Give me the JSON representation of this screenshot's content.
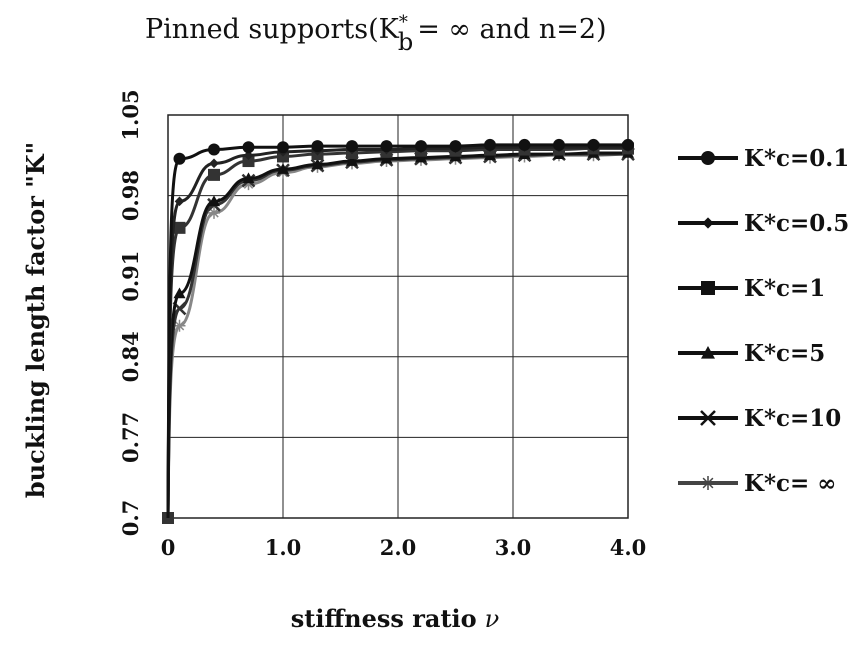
{
  "chart_data": {
    "type": "line",
    "title": "Pinned supports(K",
    "title_superscript": "*",
    "title_subscript": "b",
    "title_tail": "= ∞ and n=2)",
    "xlabel": "stiffness ratio",
    "xlabel_symbol": "ν",
    "ylabel": "buckling length factor \"K\"",
    "xlim": [
      0,
      4.0
    ],
    "ylim": [
      0.7,
      1.05
    ],
    "x_ticks": [
      0,
      1.0,
      2.0,
      3.0,
      4.0
    ],
    "x_tick_labels": [
      "0",
      "1.0",
      "2.0",
      "3.0",
      "4.0"
    ],
    "y_ticks": [
      0.7,
      0.77,
      0.84,
      0.91,
      0.98,
      1.05
    ],
    "y_tick_labels": [
      "0.7",
      "0.77",
      "0.84",
      "0.91",
      "0.98",
      "1.05"
    ],
    "grid": true,
    "legend_position": "right",
    "series": [
      {
        "name": "K*c=0.1",
        "marker": "circle",
        "color": "#111111",
        "x": [
          0.1,
          0.4,
          0.7,
          1.0,
          1.3,
          1.6,
          1.9,
          2.2,
          2.5,
          2.8,
          3.1,
          3.4,
          3.7,
          4.0
        ],
        "y": [
          1.012,
          1.02,
          1.022,
          1.022,
          1.023,
          1.023,
          1.023,
          1.023,
          1.023,
          1.024,
          1.024,
          1.024,
          1.024,
          1.024
        ]
      },
      {
        "name": "K*c=0.5",
        "marker": "diamond",
        "color": "#222222",
        "x": [
          0.1,
          0.4,
          0.7,
          1.0,
          1.3,
          1.6,
          1.9,
          2.2,
          2.5,
          2.8,
          3.1,
          3.4,
          3.7,
          4.0
        ],
        "y": [
          0.975,
          1.008,
          1.015,
          1.018,
          1.019,
          1.02,
          1.02,
          1.021,
          1.021,
          1.022,
          1.022,
          1.022,
          1.022,
          1.022
        ]
      },
      {
        "name": "K*c=1",
        "marker": "square",
        "color": "#333333",
        "x": [
          0,
          0.1,
          0.4,
          0.7,
          1.0,
          1.3,
          1.6,
          1.9,
          2.2,
          2.5,
          2.8,
          3.1,
          3.4,
          3.7,
          4.0
        ],
        "y": [
          0.7,
          0.952,
          0.998,
          1.01,
          1.014,
          1.016,
          1.017,
          1.018,
          1.019,
          1.019,
          1.02,
          1.02,
          1.02,
          1.021,
          1.021
        ]
      },
      {
        "name": "K*c=5",
        "marker": "triangle",
        "color": "#111111",
        "x": [
          0.1,
          0.4,
          0.7,
          1.0,
          1.3,
          1.6,
          1.9,
          2.2,
          2.5,
          2.8,
          3.1,
          3.4,
          3.7,
          4.0
        ],
        "y": [
          0.895,
          0.975,
          0.995,
          1.003,
          1.007,
          1.01,
          1.012,
          1.013,
          1.014,
          1.015,
          1.016,
          1.016,
          1.017,
          1.017
        ]
      },
      {
        "name": "K*c=10",
        "marker": "x",
        "color": "#333333",
        "x": [
          0.1,
          0.4,
          0.7,
          1.0,
          1.3,
          1.6,
          1.9,
          2.2,
          2.5,
          2.8,
          3.1,
          3.4,
          3.7,
          4.0
        ],
        "y": [
          0.882,
          0.972,
          0.993,
          1.002,
          1.006,
          1.009,
          1.011,
          1.012,
          1.013,
          1.014,
          1.015,
          1.016,
          1.016,
          1.016
        ]
      },
      {
        "name": "K*c= ∞",
        "marker": "asterisk",
        "color": "#888888",
        "x": [
          0.1,
          0.4,
          0.7,
          1.0,
          1.3,
          1.6,
          1.9,
          2.2,
          2.5,
          2.8,
          3.1,
          3.4,
          3.7,
          4.0
        ],
        "y": [
          0.867,
          0.965,
          0.99,
          1.0,
          1.005,
          1.008,
          1.01,
          1.011,
          1.012,
          1.013,
          1.014,
          1.015,
          1.015,
          1.016
        ]
      }
    ]
  }
}
